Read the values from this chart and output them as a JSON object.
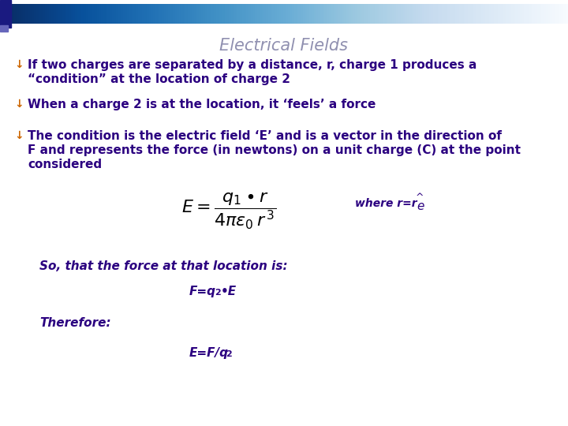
{
  "title": "Electrical Fields",
  "title_color": "#9090b0",
  "title_fontsize": 15,
  "background_color": "#ffffff",
  "bullet_color": "#cc6600",
  "text_color": "#2b0080",
  "bullet1_line1": "If two charges are separated by a distance, r, charge 1 produces a",
  "bullet1_line2": "“condition” at the location of charge 2",
  "bullet2": "When a charge 2 is at the location, it ‘feels’ a force",
  "bullet3_line1": "The condition is the electric field ‘E’ and is a vector in the direction of",
  "bullet3_line2": "F and represents the force (in newtons) on a unit charge (C) at the point",
  "bullet3_line3": "considered",
  "so_text": "So, that the force at that location is:",
  "therefore_text": "Therefore:",
  "header_dark": "#1a1a7f",
  "header_light": "#d0d0e8"
}
